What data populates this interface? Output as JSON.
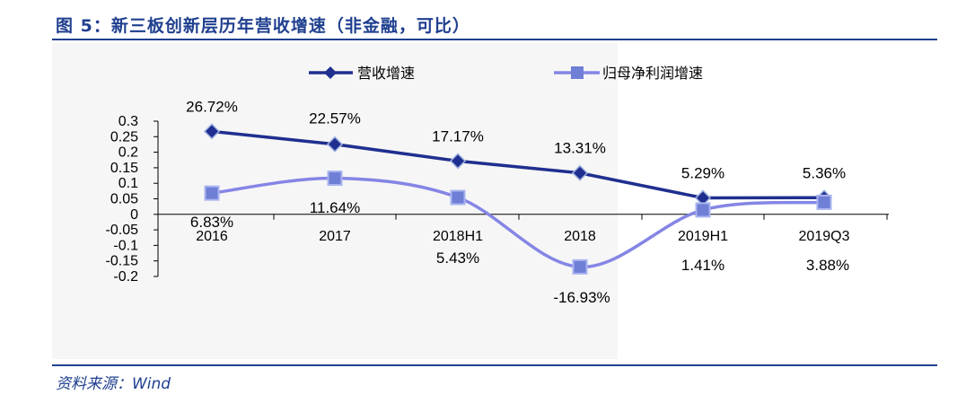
{
  "figure": {
    "title": "图 5：新三板创新层历年营收增速（非金融，可比）",
    "source": "资料来源：Wind"
  },
  "colors": {
    "series1": "#1f2f8f",
    "series2": "#8585e6",
    "series2_marker": "#6f7fd6",
    "rule": "#1f3f8f"
  },
  "chart_data": {
    "type": "line",
    "categories": [
      "2016",
      "2017",
      "2018H1",
      "2018",
      "2019H1",
      "2019Q3"
    ],
    "ylim": [
      -0.2,
      0.3
    ],
    "yticks": [
      "0.3",
      "0.25",
      "0.2",
      "0.15",
      "0.1",
      "0.05",
      "0",
      "-0.05",
      "-0.1",
      "-0.15",
      "-0.2"
    ],
    "ytick_values": [
      0.3,
      0.25,
      0.2,
      0.15,
      0.1,
      0.05,
      0,
      -0.05,
      -0.1,
      -0.15,
      -0.2
    ],
    "legend_position": "top",
    "series": [
      {
        "name": "营收增速",
        "values": [
          0.2672,
          0.2257,
          0.1717,
          0.1331,
          0.0529,
          0.0536
        ],
        "labels": [
          "26.72%",
          "22.57%",
          "17.17%",
          "13.31%",
          "5.29%",
          "5.36%"
        ],
        "marker": "diamond",
        "smooth": false
      },
      {
        "name": "归母净利润增速",
        "values": [
          0.0683,
          0.1164,
          0.0543,
          -0.1693,
          0.0141,
          0.0388
        ],
        "labels": [
          "6.83%",
          "11.64%",
          "5.43%",
          "-16.93%",
          "1.41%",
          "3.88%"
        ],
        "marker": "square",
        "smooth": true
      }
    ]
  }
}
